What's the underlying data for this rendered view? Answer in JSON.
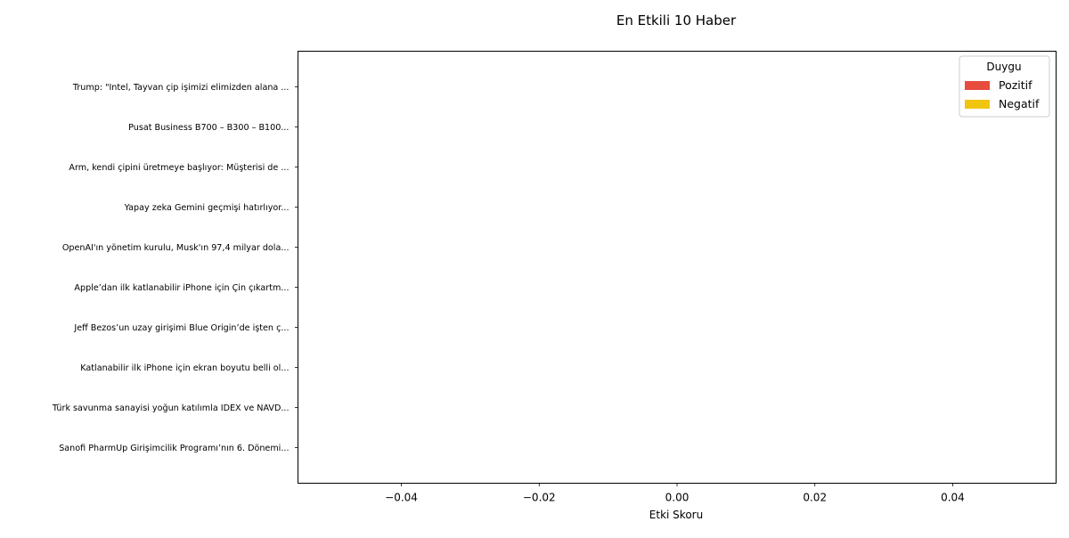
{
  "chart_data": {
    "type": "bar",
    "orientation": "horizontal",
    "title": "En Etkili 10 Haber",
    "xlabel": "Etki Skoru",
    "ylabel": "",
    "xlim": [
      -0.055,
      0.055
    ],
    "xticks": [
      -0.04,
      -0.02,
      0.0,
      0.02,
      0.04
    ],
    "xtick_labels": [
      "−0.04",
      "−0.02",
      "0.00",
      "0.02",
      "0.04"
    ],
    "grid": false,
    "categories": [
      "Trump: \"Intel, Tayvan çip işimizi elimizden alana ...",
      "Pusat Business B700 – B300 – B100...",
      "Arm, kendi çipini üretmeye başlıyor: Müşterisi de ...",
      "Yapay zeka Gemini geçmişi hatırlıyor...",
      "OpenAI'ın yönetim kurulu, Musk'ın 97,4 milyar dola...",
      "Apple’dan ilk katlanabilir iPhone için Çin çıkartm...",
      "Jeff Bezos’un uzay girişimi Blue Origin’de işten ç...",
      "Katlanabilir ilk iPhone için ekran boyutu belli ol...",
      "Türk savunma sanayisi yoğun katılımla IDEX ve NAVD...",
      "Sanofi PharmUp Girişimcilik Programı’nın 6. Dönemi..."
    ],
    "values": [
      0,
      0,
      0,
      0,
      0,
      0,
      0,
      0,
      0,
      0
    ],
    "legend": {
      "title": "Duygu",
      "placement": "top-right",
      "entries": [
        {
          "label": "Pozitif",
          "color": "#e74c3c"
        },
        {
          "label": "Negatif",
          "color": "#f1c40f"
        }
      ]
    }
  }
}
